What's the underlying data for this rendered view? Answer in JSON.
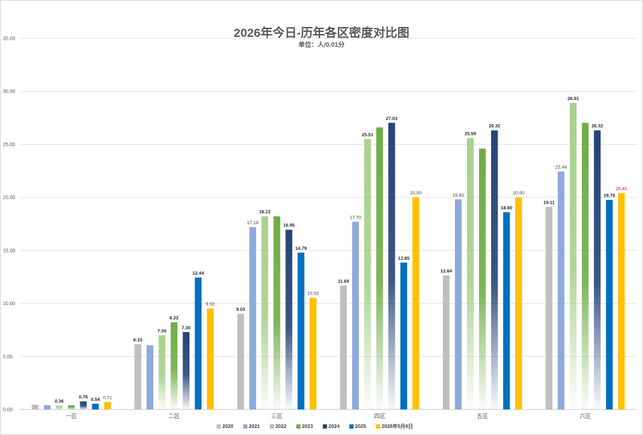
{
  "chart_data": {
    "type": "bar",
    "title": "2026年今日-历年各区密度对比图",
    "subtitle": "单位：人/0.01分",
    "categories": [
      "一区",
      "二区",
      "三区",
      "四区",
      "五区",
      "六区"
    ],
    "ylim": [
      0,
      35
    ],
    "yticks": [
      "0.00",
      "5.00",
      "10.00",
      "15.00",
      "20.00",
      "25.00",
      "30.00",
      "35.00"
    ],
    "grid": true,
    "legend_position": "bottom",
    "series": [
      {
        "name": "2020",
        "color": "#bfbfbf",
        "gradient": false,
        "values": [
          0.45,
          6.15,
          9.03,
          11.69,
          12.64,
          19.11
        ],
        "labels": [
          "",
          "6.15",
          "9.03",
          "11.69",
          "12.64",
          "19.11"
        ],
        "bold": [
          false,
          true,
          true,
          true,
          true,
          true
        ]
      },
      {
        "name": "2021",
        "color": "#8eaadb",
        "gradient": false,
        "values": [
          0.4,
          6.05,
          17.19,
          17.7,
          19.82,
          22.44
        ],
        "labels": [
          "",
          "",
          "17.19",
          "17.70",
          "19.82",
          "22.44"
        ],
        "bold": [
          false,
          false,
          false,
          false,
          false,
          false
        ]
      },
      {
        "name": "2022",
        "color": "#a9d18e",
        "gradient": true,
        "values": [
          0.36,
          7.0,
          18.22,
          25.51,
          25.59,
          28.91
        ],
        "labels": [
          "0.36",
          "7.00",
          "18.22",
          "25.51",
          "25.59",
          "28.91"
        ],
        "bold": [
          true,
          true,
          true,
          true,
          true,
          true
        ]
      },
      {
        "name": "2023",
        "color": "#70ad47",
        "gradient": true,
        "values": [
          0.4,
          8.22,
          18.22,
          26.6,
          24.6,
          27.03
        ],
        "labels": [
          "",
          "8.22",
          "",
          "",
          "",
          ""
        ],
        "bold": [
          false,
          true,
          false,
          false,
          false,
          false
        ]
      },
      {
        "name": "2024",
        "color": "#264478",
        "gradient": true,
        "values": [
          0.76,
          7.3,
          16.95,
          27.03,
          26.32,
          26.32
        ],
        "labels": [
          "0.76",
          "7.30",
          "16.95",
          "27.03",
          "26.32",
          "26.32"
        ],
        "bold": [
          true,
          true,
          true,
          true,
          true,
          true
        ]
      },
      {
        "name": "2025",
        "color": "#0070c0",
        "gradient": false,
        "values": [
          0.54,
          12.44,
          14.79,
          13.85,
          18.6,
          19.76
        ],
        "labels": [
          "0.54",
          "12.44",
          "14.79",
          "13.85",
          "18.60",
          "19.76"
        ],
        "bold": [
          true,
          true,
          true,
          true,
          true,
          true
        ]
      },
      {
        "name": "2026年5月9日",
        "color": "#ffc000",
        "gradient": false,
        "values": [
          0.71,
          9.52,
          10.53,
          20.0,
          20.0,
          20.41
        ],
        "labels": [
          "0.71",
          "9.52",
          "10.53",
          "20.00",
          "20.00",
          "20.41"
        ],
        "bold": [
          false,
          false,
          false,
          false,
          false,
          false
        ],
        "red_label_index": 5
      }
    ]
  }
}
